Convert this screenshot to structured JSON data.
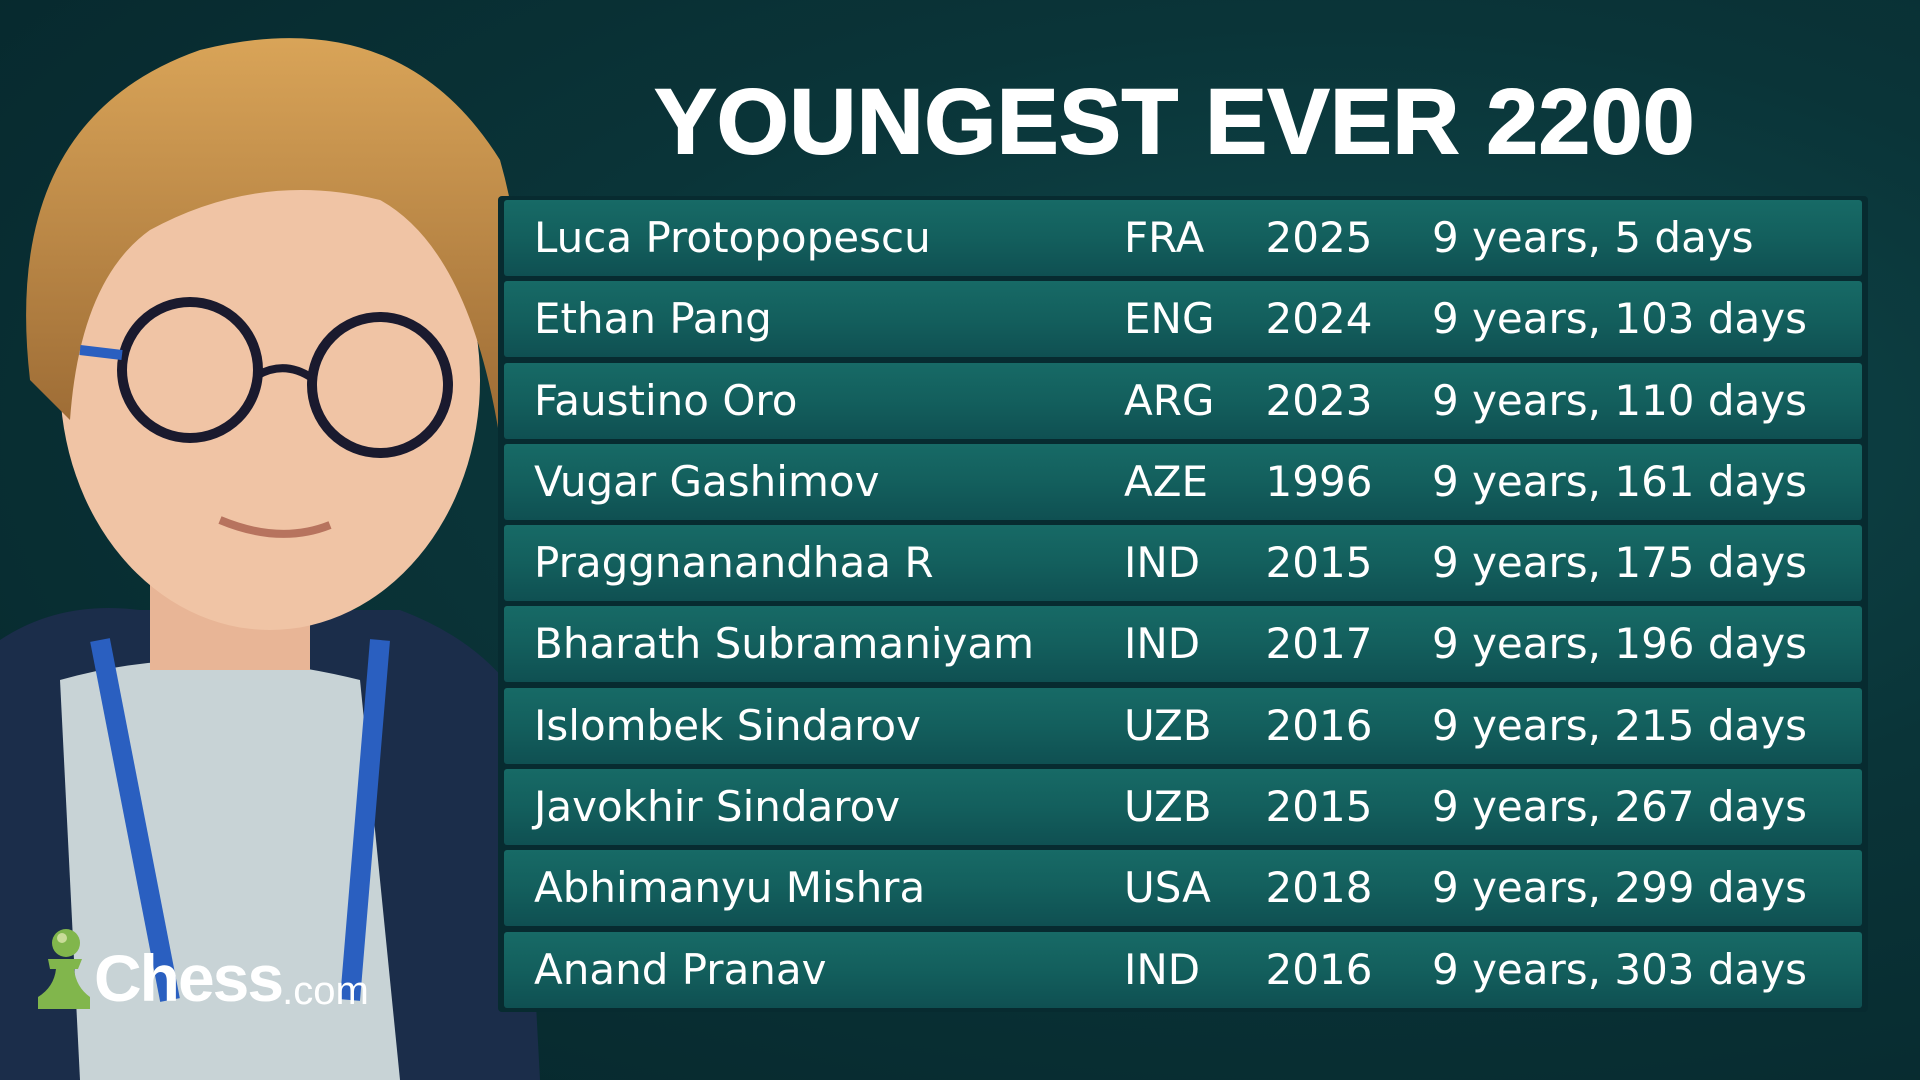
{
  "title": "YOUNGEST EVER 2200",
  "rows": [
    {
      "name": "Luca Protopopescu",
      "country": "FRA",
      "year": "2025",
      "age": "9 years, 5 days"
    },
    {
      "name": "Ethan Pang",
      "country": "ENG",
      "year": "2024",
      "age": "9 years, 103 days"
    },
    {
      "name": "Faustino Oro",
      "country": "ARG",
      "year": "2023",
      "age": "9 years, 110 days"
    },
    {
      "name": "Vugar Gashimov",
      "country": "AZE",
      "year": "1996",
      "age": "9 years, 161 days"
    },
    {
      "name": "Praggnanandhaa R",
      "country": "IND",
      "year": "2015",
      "age": "9 years, 175 days"
    },
    {
      "name": "Bharath Subramaniyam",
      "country": "IND",
      "year": "2017",
      "age": "9 years, 196 days"
    },
    {
      "name": "Islombek Sindarov",
      "country": "UZB",
      "year": "2016",
      "age": "9 years, 215 days"
    },
    {
      "name": "Javokhir Sindarov",
      "country": "UZB",
      "year": "2015",
      "age": "9 years, 267 days"
    },
    {
      "name": "Abhimanyu Mishra",
      "country": "USA",
      "year": "2018",
      "age": "9 years, 299 days"
    },
    {
      "name": "Anand Pranav",
      "country": "IND",
      "year": "2016",
      "age": "9 years, 303 days"
    }
  ],
  "logo": {
    "brand": "Chess",
    "domain": ".com",
    "pawn_color": "#81b64c"
  },
  "colors": {
    "background": "#0a3438",
    "row": "#135f5d",
    "text": "#ffffff"
  }
}
